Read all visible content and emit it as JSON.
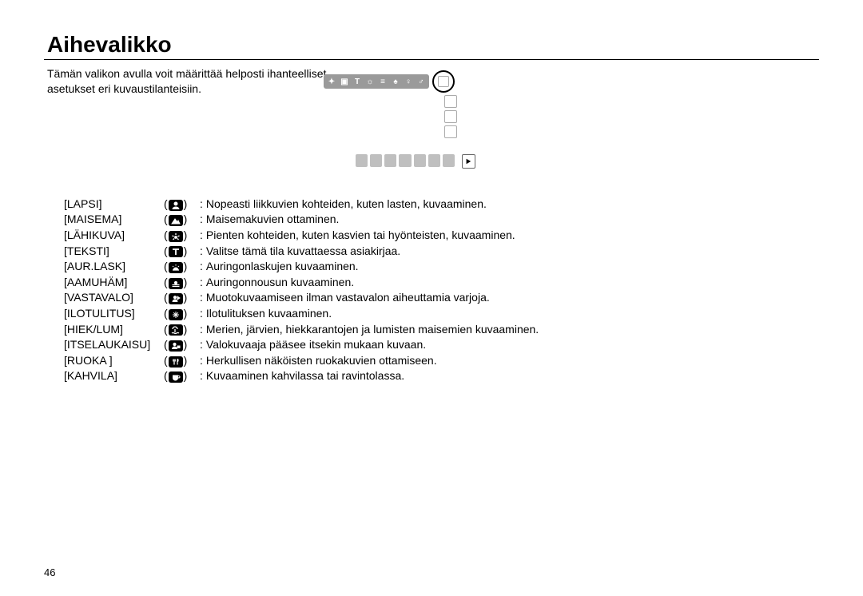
{
  "page": {
    "title": "Aihevalikko",
    "intro": "Tämän valikon avulla voit määrittää helposti ihanteelliset asetukset eri kuvaustilanteisiin.",
    "page_number": "46"
  },
  "modes": [
    {
      "label": "[LAPSI]",
      "icon": "child",
      "desc": "Nopeasti liikkuvien kohteiden, kuten lasten, kuvaaminen."
    },
    {
      "label": "[MAISEMA]",
      "icon": "landscape",
      "desc": "Maisemakuvien ottaminen."
    },
    {
      "label": "[LÄHIKUVA]",
      "icon": "closeup",
      "desc": "Pienten kohteiden, kuten kasvien tai hyönteisten, kuvaaminen."
    },
    {
      "label": "[TEKSTI]",
      "icon": "text",
      "desc": "Valitse tämä tila kuvattaessa asiakirjaa."
    },
    {
      "label": "[AUR.LASK]",
      "icon": "sunset",
      "desc": "Auringonlaskujen kuvaaminen."
    },
    {
      "label": "[AAMUHÄM]",
      "icon": "dawn",
      "desc": "Auringonnousun kuvaaminen."
    },
    {
      "label": "[VASTAVALO]",
      "icon": "backlight",
      "desc": "Muotokuvaamiseen ilman vastavalon aiheuttamia varjoja."
    },
    {
      "label": "[ILOTULITUS]",
      "icon": "firework",
      "desc": "Ilotulituksen kuvaaminen."
    },
    {
      "label": "[HIEK/LUM]",
      "icon": "beach",
      "desc": "Merien, järvien, hiekkarantojen ja lumisten maisemien kuvaaminen."
    },
    {
      "label": "[ITSELAUKAISU]",
      "icon": "selftimer",
      "desc": "Valokuvaaja pääsee itsekin mukaan kuvaan."
    },
    {
      "label": "[RUOKA ]",
      "icon": "food",
      "desc": "Herkullisen näköisten ruokakuvien ottamiseen."
    },
    {
      "label": "[KAHVILA]",
      "icon": "cafe",
      "desc": "Kuvaaminen kahvilassa tai ravintolassa."
    }
  ],
  "style": {
    "icon_bg": "#000000",
    "icon_fg": "#ffffff",
    "text_color": "#000000",
    "font_size_body": 14,
    "font_size_title": 28,
    "rule_color": "#000000",
    "strip_bg": "#9a9a9a",
    "bottom_cell_bg": "#bfbfbf"
  }
}
